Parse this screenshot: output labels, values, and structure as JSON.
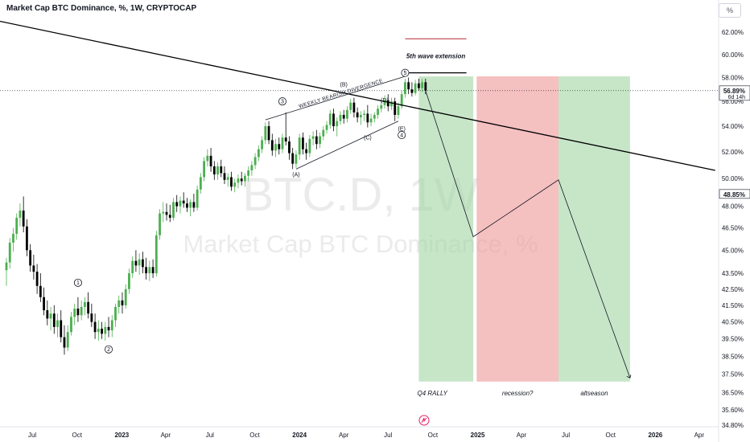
{
  "header": {
    "title": "Market Cap BTC Dominance, %, 1W, CRYPTOCAP",
    "scale_button": "%"
  },
  "watermark": {
    "symbol": "BTC.D, 1W",
    "description": "Market Cap BTC Dominance, %"
  },
  "chart_data": {
    "type": "candlestick",
    "timeframe": "1W",
    "y_scale": "log",
    "ylim": [
      34.6,
      63.0
    ],
    "y_ticks": [
      "62.00%",
      "60.00%",
      "58.00%",
      "56.00%",
      "54.00%",
      "52.00%",
      "50.00%",
      "48.00%",
      "46.50%",
      "45.00%",
      "43.50%",
      "42.50%",
      "41.50%",
      "40.50%",
      "39.50%",
      "38.50%",
      "37.50%",
      "36.50%",
      "35.60%",
      "34.80%"
    ],
    "x_ticks": [
      "Jul",
      "Oct",
      "2023",
      "Apr",
      "Jul",
      "Oct",
      "2024",
      "Apr",
      "Jul",
      "Oct",
      "2025",
      "Apr",
      "Jul",
      "Oct",
      "2026",
      "Apr"
    ],
    "x_range": [
      "2022-05-09",
      "2026-05-11"
    ],
    "price_labels": [
      {
        "value": 56.89,
        "text": "56.89%",
        "sub": "6d 14h",
        "color": "#131722"
      },
      {
        "value": 48.85,
        "text": "48.85%",
        "color": "#131722"
      }
    ],
    "candles": [
      {
        "t": "2022-05-09",
        "o": 43.7,
        "h": 44.5,
        "l": 42.7,
        "c": 44.2
      },
      {
        "t": "2022-05-16",
        "o": 44.2,
        "h": 45.8,
        "l": 43.8,
        "c": 45.5
      },
      {
        "t": "2022-05-23",
        "o": 45.5,
        "h": 46.5,
        "l": 44.9,
        "c": 46.1
      },
      {
        "t": "2022-05-30",
        "o": 46.1,
        "h": 47.5,
        "l": 45.7,
        "c": 47.2
      },
      {
        "t": "2022-06-06",
        "o": 47.2,
        "h": 48.2,
        "l": 46.6,
        "c": 47.7
      },
      {
        "t": "2022-06-13",
        "o": 47.7,
        "h": 48.7,
        "l": 46.2,
        "c": 46.6
      },
      {
        "t": "2022-06-20",
        "o": 46.6,
        "h": 47.1,
        "l": 44.6,
        "c": 45.0
      },
      {
        "t": "2022-06-27",
        "o": 45.0,
        "h": 45.4,
        "l": 43.6,
        "c": 44.0
      },
      {
        "t": "2022-07-04",
        "o": 44.0,
        "h": 44.7,
        "l": 43.1,
        "c": 43.6
      },
      {
        "t": "2022-07-11",
        "o": 43.6,
        "h": 44.1,
        "l": 42.2,
        "c": 42.7
      },
      {
        "t": "2022-07-18",
        "o": 42.7,
        "h": 43.5,
        "l": 41.7,
        "c": 42.0
      },
      {
        "t": "2022-07-25",
        "o": 42.0,
        "h": 42.6,
        "l": 40.9,
        "c": 41.2
      },
      {
        "t": "2022-08-01",
        "o": 41.2,
        "h": 41.8,
        "l": 40.3,
        "c": 40.7
      },
      {
        "t": "2022-08-08",
        "o": 40.7,
        "h": 41.4,
        "l": 40.0,
        "c": 41.0
      },
      {
        "t": "2022-08-15",
        "o": 41.0,
        "h": 41.5,
        "l": 39.8,
        "c": 40.2
      },
      {
        "t": "2022-08-22",
        "o": 40.2,
        "h": 41.0,
        "l": 39.6,
        "c": 40.6
      },
      {
        "t": "2022-08-29",
        "o": 40.6,
        "h": 41.2,
        "l": 39.3,
        "c": 39.6
      },
      {
        "t": "2022-09-05",
        "o": 39.6,
        "h": 40.3,
        "l": 38.6,
        "c": 39.0
      },
      {
        "t": "2022-09-12",
        "o": 39.0,
        "h": 40.3,
        "l": 38.8,
        "c": 39.9
      },
      {
        "t": "2022-09-19",
        "o": 39.9,
        "h": 41.1,
        "l": 39.7,
        "c": 40.8
      },
      {
        "t": "2022-09-26",
        "o": 40.8,
        "h": 41.6,
        "l": 40.3,
        "c": 41.3
      },
      {
        "t": "2022-10-03",
        "o": 41.3,
        "h": 42.0,
        "l": 40.5,
        "c": 40.9
      },
      {
        "t": "2022-10-10",
        "o": 40.9,
        "h": 41.8,
        "l": 40.6,
        "c": 41.4
      },
      {
        "t": "2022-10-17",
        "o": 41.4,
        "h": 42.0,
        "l": 40.9,
        "c": 41.7
      },
      {
        "t": "2022-10-24",
        "o": 41.7,
        "h": 42.3,
        "l": 40.7,
        "c": 41.0
      },
      {
        "t": "2022-10-31",
        "o": 41.0,
        "h": 41.6,
        "l": 40.2,
        "c": 40.5
      },
      {
        "t": "2022-11-07",
        "o": 40.5,
        "h": 41.0,
        "l": 39.5,
        "c": 39.9
      },
      {
        "t": "2022-11-14",
        "o": 39.9,
        "h": 40.6,
        "l": 39.4,
        "c": 40.1
      },
      {
        "t": "2022-11-21",
        "o": 40.1,
        "h": 40.5,
        "l": 39.5,
        "c": 39.8
      },
      {
        "t": "2022-11-28",
        "o": 39.8,
        "h": 40.5,
        "l": 39.4,
        "c": 40.2
      },
      {
        "t": "2022-12-05",
        "o": 40.2,
        "h": 40.8,
        "l": 39.6,
        "c": 40.0
      },
      {
        "t": "2022-12-12",
        "o": 40.0,
        "h": 40.9,
        "l": 39.6,
        "c": 40.6
      },
      {
        "t": "2022-12-19",
        "o": 40.6,
        "h": 41.6,
        "l": 40.2,
        "c": 41.4
      },
      {
        "t": "2022-12-26",
        "o": 41.4,
        "h": 42.1,
        "l": 41.0,
        "c": 41.8
      },
      {
        "t": "2023-01-02",
        "o": 41.8,
        "h": 42.3,
        "l": 41.0,
        "c": 41.5
      },
      {
        "t": "2023-01-09",
        "o": 41.5,
        "h": 42.8,
        "l": 41.3,
        "c": 42.5
      },
      {
        "t": "2023-01-16",
        "o": 42.5,
        "h": 43.8,
        "l": 42.2,
        "c": 43.5
      },
      {
        "t": "2023-01-23",
        "o": 43.5,
        "h": 44.6,
        "l": 43.2,
        "c": 44.3
      },
      {
        "t": "2023-01-30",
        "o": 44.3,
        "h": 45.0,
        "l": 43.6,
        "c": 44.0
      },
      {
        "t": "2023-02-06",
        "o": 44.0,
        "h": 44.8,
        "l": 43.4,
        "c": 44.4
      },
      {
        "t": "2023-02-13",
        "o": 44.4,
        "h": 44.9,
        "l": 43.5,
        "c": 43.9
      },
      {
        "t": "2023-02-20",
        "o": 43.9,
        "h": 44.5,
        "l": 43.1,
        "c": 43.5
      },
      {
        "t": "2023-02-27",
        "o": 43.5,
        "h": 44.3,
        "l": 43.0,
        "c": 43.9
      },
      {
        "t": "2023-03-06",
        "o": 43.9,
        "h": 44.4,
        "l": 43.2,
        "c": 43.5
      },
      {
        "t": "2023-03-13",
        "o": 43.5,
        "h": 46.3,
        "l": 43.3,
        "c": 46.0
      },
      {
        "t": "2023-03-20",
        "o": 46.0,
        "h": 47.8,
        "l": 45.7,
        "c": 47.5
      },
      {
        "t": "2023-03-27",
        "o": 47.5,
        "h": 48.3,
        "l": 46.9,
        "c": 47.6
      },
      {
        "t": "2023-04-03",
        "o": 47.6,
        "h": 48.2,
        "l": 47.0,
        "c": 47.4
      },
      {
        "t": "2023-04-10",
        "o": 47.4,
        "h": 48.1,
        "l": 46.9,
        "c": 47.2
      },
      {
        "t": "2023-04-17",
        "o": 47.2,
        "h": 48.6,
        "l": 47.0,
        "c": 48.3
      },
      {
        "t": "2023-04-24",
        "o": 48.3,
        "h": 48.8,
        "l": 47.6,
        "c": 48.0
      },
      {
        "t": "2023-05-01",
        "o": 48.0,
        "h": 48.7,
        "l": 47.5,
        "c": 48.4
      },
      {
        "t": "2023-05-08",
        "o": 48.4,
        "h": 49.0,
        "l": 47.9,
        "c": 48.2
      },
      {
        "t": "2023-05-15",
        "o": 48.2,
        "h": 48.6,
        "l": 47.6,
        "c": 47.9
      },
      {
        "t": "2023-05-22",
        "o": 47.9,
        "h": 48.5,
        "l": 47.3,
        "c": 48.3
      },
      {
        "t": "2023-05-29",
        "o": 48.3,
        "h": 48.9,
        "l": 47.6,
        "c": 47.9
      },
      {
        "t": "2023-06-05",
        "o": 47.9,
        "h": 49.5,
        "l": 47.7,
        "c": 49.2
      },
      {
        "t": "2023-06-12",
        "o": 49.2,
        "h": 50.4,
        "l": 48.9,
        "c": 50.1
      },
      {
        "t": "2023-06-19",
        "o": 50.1,
        "h": 51.6,
        "l": 49.8,
        "c": 51.3
      },
      {
        "t": "2023-06-26",
        "o": 51.3,
        "h": 52.2,
        "l": 50.9,
        "c": 51.7
      },
      {
        "t": "2023-07-03",
        "o": 51.7,
        "h": 52.3,
        "l": 50.5,
        "c": 50.9
      },
      {
        "t": "2023-07-10",
        "o": 50.9,
        "h": 51.3,
        "l": 49.9,
        "c": 50.3
      },
      {
        "t": "2023-07-17",
        "o": 50.3,
        "h": 51.2,
        "l": 49.9,
        "c": 50.9
      },
      {
        "t": "2023-07-24",
        "o": 50.9,
        "h": 51.4,
        "l": 50.1,
        "c": 50.4
      },
      {
        "t": "2023-07-31",
        "o": 50.4,
        "h": 50.9,
        "l": 49.6,
        "c": 49.9
      },
      {
        "t": "2023-08-07",
        "o": 49.9,
        "h": 50.4,
        "l": 49.4,
        "c": 50.1
      },
      {
        "t": "2023-08-14",
        "o": 50.1,
        "h": 50.5,
        "l": 49.1,
        "c": 49.4
      },
      {
        "t": "2023-08-21",
        "o": 49.4,
        "h": 50.0,
        "l": 49.0,
        "c": 49.7
      },
      {
        "t": "2023-08-28",
        "o": 49.7,
        "h": 50.3,
        "l": 49.3,
        "c": 50.0
      },
      {
        "t": "2023-09-04",
        "o": 50.0,
        "h": 50.5,
        "l": 49.5,
        "c": 49.8
      },
      {
        "t": "2023-09-11",
        "o": 49.8,
        "h": 50.4,
        "l": 49.4,
        "c": 50.2
      },
      {
        "t": "2023-09-18",
        "o": 50.2,
        "h": 50.9,
        "l": 49.8,
        "c": 50.6
      },
      {
        "t": "2023-09-25",
        "o": 50.6,
        "h": 51.3,
        "l": 50.2,
        "c": 51.0
      },
      {
        "t": "2023-10-02",
        "o": 51.0,
        "h": 51.9,
        "l": 50.7,
        "c": 51.6
      },
      {
        "t": "2023-10-09",
        "o": 51.6,
        "h": 52.5,
        "l": 51.3,
        "c": 52.2
      },
      {
        "t": "2023-10-16",
        "o": 52.2,
        "h": 53.2,
        "l": 51.9,
        "c": 52.9
      },
      {
        "t": "2023-10-23",
        "o": 52.9,
        "h": 54.3,
        "l": 52.6,
        "c": 54.0
      },
      {
        "t": "2023-10-30",
        "o": 54.0,
        "h": 54.4,
        "l": 52.6,
        "c": 52.9
      },
      {
        "t": "2023-11-06",
        "o": 52.9,
        "h": 53.4,
        "l": 51.7,
        "c": 52.1
      },
      {
        "t": "2023-11-13",
        "o": 52.1,
        "h": 53.0,
        "l": 51.6,
        "c": 52.6
      },
      {
        "t": "2023-11-20",
        "o": 52.6,
        "h": 53.1,
        "l": 51.8,
        "c": 52.2
      },
      {
        "t": "2023-11-27",
        "o": 52.2,
        "h": 53.4,
        "l": 51.9,
        "c": 53.1
      },
      {
        "t": "2023-12-04",
        "o": 53.1,
        "h": 55.1,
        "l": 52.5,
        "c": 52.8
      },
      {
        "t": "2023-12-11",
        "o": 52.8,
        "h": 53.2,
        "l": 51.4,
        "c": 51.9
      },
      {
        "t": "2023-12-18",
        "o": 51.9,
        "h": 52.3,
        "l": 50.7,
        "c": 51.1
      },
      {
        "t": "2023-12-25",
        "o": 51.1,
        "h": 52.1,
        "l": 50.8,
        "c": 51.8
      },
      {
        "t": "2024-01-01",
        "o": 51.8,
        "h": 53.4,
        "l": 51.4,
        "c": 53.1
      },
      {
        "t": "2024-01-08",
        "o": 53.1,
        "h": 53.5,
        "l": 51.8,
        "c": 52.2
      },
      {
        "t": "2024-01-15",
        "o": 52.2,
        "h": 52.7,
        "l": 51.4,
        "c": 51.9
      },
      {
        "t": "2024-01-22",
        "o": 51.9,
        "h": 53.3,
        "l": 51.6,
        "c": 53.0
      },
      {
        "t": "2024-01-29",
        "o": 53.0,
        "h": 53.6,
        "l": 52.5,
        "c": 53.2
      },
      {
        "t": "2024-02-05",
        "o": 53.2,
        "h": 53.7,
        "l": 52.2,
        "c": 52.6
      },
      {
        "t": "2024-02-12",
        "o": 52.6,
        "h": 53.5,
        "l": 52.3,
        "c": 53.2
      },
      {
        "t": "2024-02-19",
        "o": 53.2,
        "h": 54.0,
        "l": 52.9,
        "c": 53.7
      },
      {
        "t": "2024-02-26",
        "o": 53.7,
        "h": 54.4,
        "l": 53.4,
        "c": 54.1
      },
      {
        "t": "2024-03-04",
        "o": 54.1,
        "h": 55.3,
        "l": 53.8,
        "c": 55.0
      },
      {
        "t": "2024-03-11",
        "o": 55.0,
        "h": 55.4,
        "l": 53.6,
        "c": 54.0
      },
      {
        "t": "2024-03-18",
        "o": 54.0,
        "h": 54.7,
        "l": 53.2,
        "c": 54.4
      },
      {
        "t": "2024-03-25",
        "o": 54.4,
        "h": 55.2,
        "l": 54.1,
        "c": 54.9
      },
      {
        "t": "2024-04-01",
        "o": 54.9,
        "h": 55.3,
        "l": 54.2,
        "c": 54.6
      },
      {
        "t": "2024-04-08",
        "o": 54.6,
        "h": 55.6,
        "l": 54.3,
        "c": 55.3
      },
      {
        "t": "2024-04-15",
        "o": 55.3,
        "h": 56.2,
        "l": 55.0,
        "c": 55.9
      },
      {
        "t": "2024-04-22",
        "o": 55.9,
        "h": 56.3,
        "l": 54.7,
        "c": 55.1
      },
      {
        "t": "2024-04-29",
        "o": 55.1,
        "h": 55.5,
        "l": 54.3,
        "c": 54.7
      },
      {
        "t": "2024-05-06",
        "o": 54.7,
        "h": 55.2,
        "l": 54.1,
        "c": 54.9
      },
      {
        "t": "2024-05-13",
        "o": 54.9,
        "h": 55.3,
        "l": 54.4,
        "c": 55.0
      },
      {
        "t": "2024-05-20",
        "o": 55.0,
        "h": 55.7,
        "l": 53.9,
        "c": 54.3
      },
      {
        "t": "2024-05-27",
        "o": 54.3,
        "h": 55.0,
        "l": 54.0,
        "c": 54.6
      },
      {
        "t": "2024-06-03",
        "o": 54.6,
        "h": 55.1,
        "l": 54.3,
        "c": 54.9
      },
      {
        "t": "2024-06-10",
        "o": 54.9,
        "h": 55.7,
        "l": 54.6,
        "c": 55.4
      },
      {
        "t": "2024-06-17",
        "o": 55.4,
        "h": 56.0,
        "l": 55.1,
        "c": 55.7
      },
      {
        "t": "2024-06-24",
        "o": 55.7,
        "h": 56.5,
        "l": 55.4,
        "c": 56.1
      },
      {
        "t": "2024-07-01",
        "o": 56.1,
        "h": 56.6,
        "l": 55.2,
        "c": 55.6
      },
      {
        "t": "2024-07-08",
        "o": 55.6,
        "h": 56.3,
        "l": 55.3,
        "c": 56.0
      },
      {
        "t": "2024-07-15",
        "o": 56.0,
        "h": 56.3,
        "l": 54.4,
        "c": 54.9
      },
      {
        "t": "2024-07-22",
        "o": 54.9,
        "h": 55.9,
        "l": 54.6,
        "c": 55.6
      },
      {
        "t": "2024-07-29",
        "o": 55.6,
        "h": 56.9,
        "l": 55.4,
        "c": 56.6
      },
      {
        "t": "2024-08-05",
        "o": 56.6,
        "h": 57.9,
        "l": 56.3,
        "c": 57.6
      },
      {
        "t": "2024-08-12",
        "o": 57.6,
        "h": 58.0,
        "l": 56.6,
        "c": 57.0
      },
      {
        "t": "2024-08-19",
        "o": 57.0,
        "h": 57.6,
        "l": 56.4,
        "c": 56.7
      },
      {
        "t": "2024-08-26",
        "o": 56.7,
        "h": 57.8,
        "l": 56.5,
        "c": 57.5
      },
      {
        "t": "2024-09-02",
        "o": 57.5,
        "h": 57.9,
        "l": 56.9,
        "c": 57.1
      },
      {
        "t": "2024-09-09",
        "o": 57.1,
        "h": 57.9,
        "l": 56.8,
        "c": 57.6
      },
      {
        "t": "2024-09-16",
        "o": 57.6,
        "h": 57.9,
        "l": 56.6,
        "c": 56.89
      }
    ],
    "trendline": {
      "points": [
        {
          "t": "2022-04-04",
          "y": 63.2
        },
        {
          "t": "2026-05-04",
          "y": 50.6
        }
      ],
      "color": "#000000"
    },
    "wedge_lines": [
      {
        "points": [
          {
            "t": "2023-10-23",
            "y": 54.5
          },
          {
            "t": "2024-08-05",
            "y": 58.1
          }
        ]
      },
      {
        "points": [
          {
            "t": "2023-12-25",
            "y": 50.7
          },
          {
            "t": "2024-07-22",
            "y": 54.4
          }
        ]
      }
    ],
    "wedge_annotation": "WEEKLY BEARISH DIVERGENCE",
    "wave_labels": [
      {
        "text": "1",
        "circled": true,
        "t": "2022-10-03",
        "y": 42.9
      },
      {
        "text": "2",
        "circled": true,
        "t": "2022-12-05",
        "y": 38.9
      },
      {
        "text": "3",
        "circled": true,
        "t": "2023-11-27",
        "y": 56.0
      },
      {
        "text": "4",
        "circled": true,
        "t": "2024-07-29",
        "y": 53.3
      },
      {
        "text": "5",
        "circled": true,
        "t": "2024-08-05",
        "y": 58.4
      },
      {
        "text": "(A)",
        "circled": false,
        "t": "2023-12-25",
        "y": 50.3
      },
      {
        "text": "(B)",
        "circled": false,
        "t": "2024-04-01",
        "y": 57.4
      },
      {
        "text": "(C)",
        "circled": false,
        "t": "2024-05-20",
        "y": 53.1
      },
      {
        "text": "(D)",
        "circled": false,
        "t": "2024-06-24",
        "y": 56.1
      },
      {
        "text": "(E)",
        "circled": false,
        "t": "2024-07-29",
        "y": 53.8
      }
    ],
    "extension": {
      "label": "5th wave extension",
      "upper": {
        "t0": "2024-08-05",
        "t1": "2024-12-09",
        "y": 61.4,
        "color": "#b22833"
      },
      "lower": {
        "t0": "2024-08-05",
        "t1": "2024-12-09",
        "y": 58.4,
        "color": "#000000"
      }
    },
    "zones": [
      {
        "label": "Q4 RALLY",
        "t0": "2024-09-02",
        "t1": "2024-12-23",
        "y0": 37.1,
        "y1": 58.1,
        "color": "#a5d6a7"
      },
      {
        "label": "recession?",
        "t0": "2024-12-30",
        "t1": "2025-06-16",
        "y0": 37.1,
        "y1": 58.1,
        "color": "#ef9a9a"
      },
      {
        "label": "altseason",
        "t0": "2025-06-16",
        "t1": "2025-11-10",
        "y0": 37.1,
        "y1": 58.1,
        "color": "#a5d6a7"
      }
    ],
    "projection_path": [
      {
        "t": "2024-09-16",
        "y": 56.9
      },
      {
        "t": "2024-12-23",
        "y": 45.9
      },
      {
        "t": "2025-06-16",
        "y": 49.9
      },
      {
        "t": "2025-11-10",
        "y": 37.3
      }
    ]
  }
}
